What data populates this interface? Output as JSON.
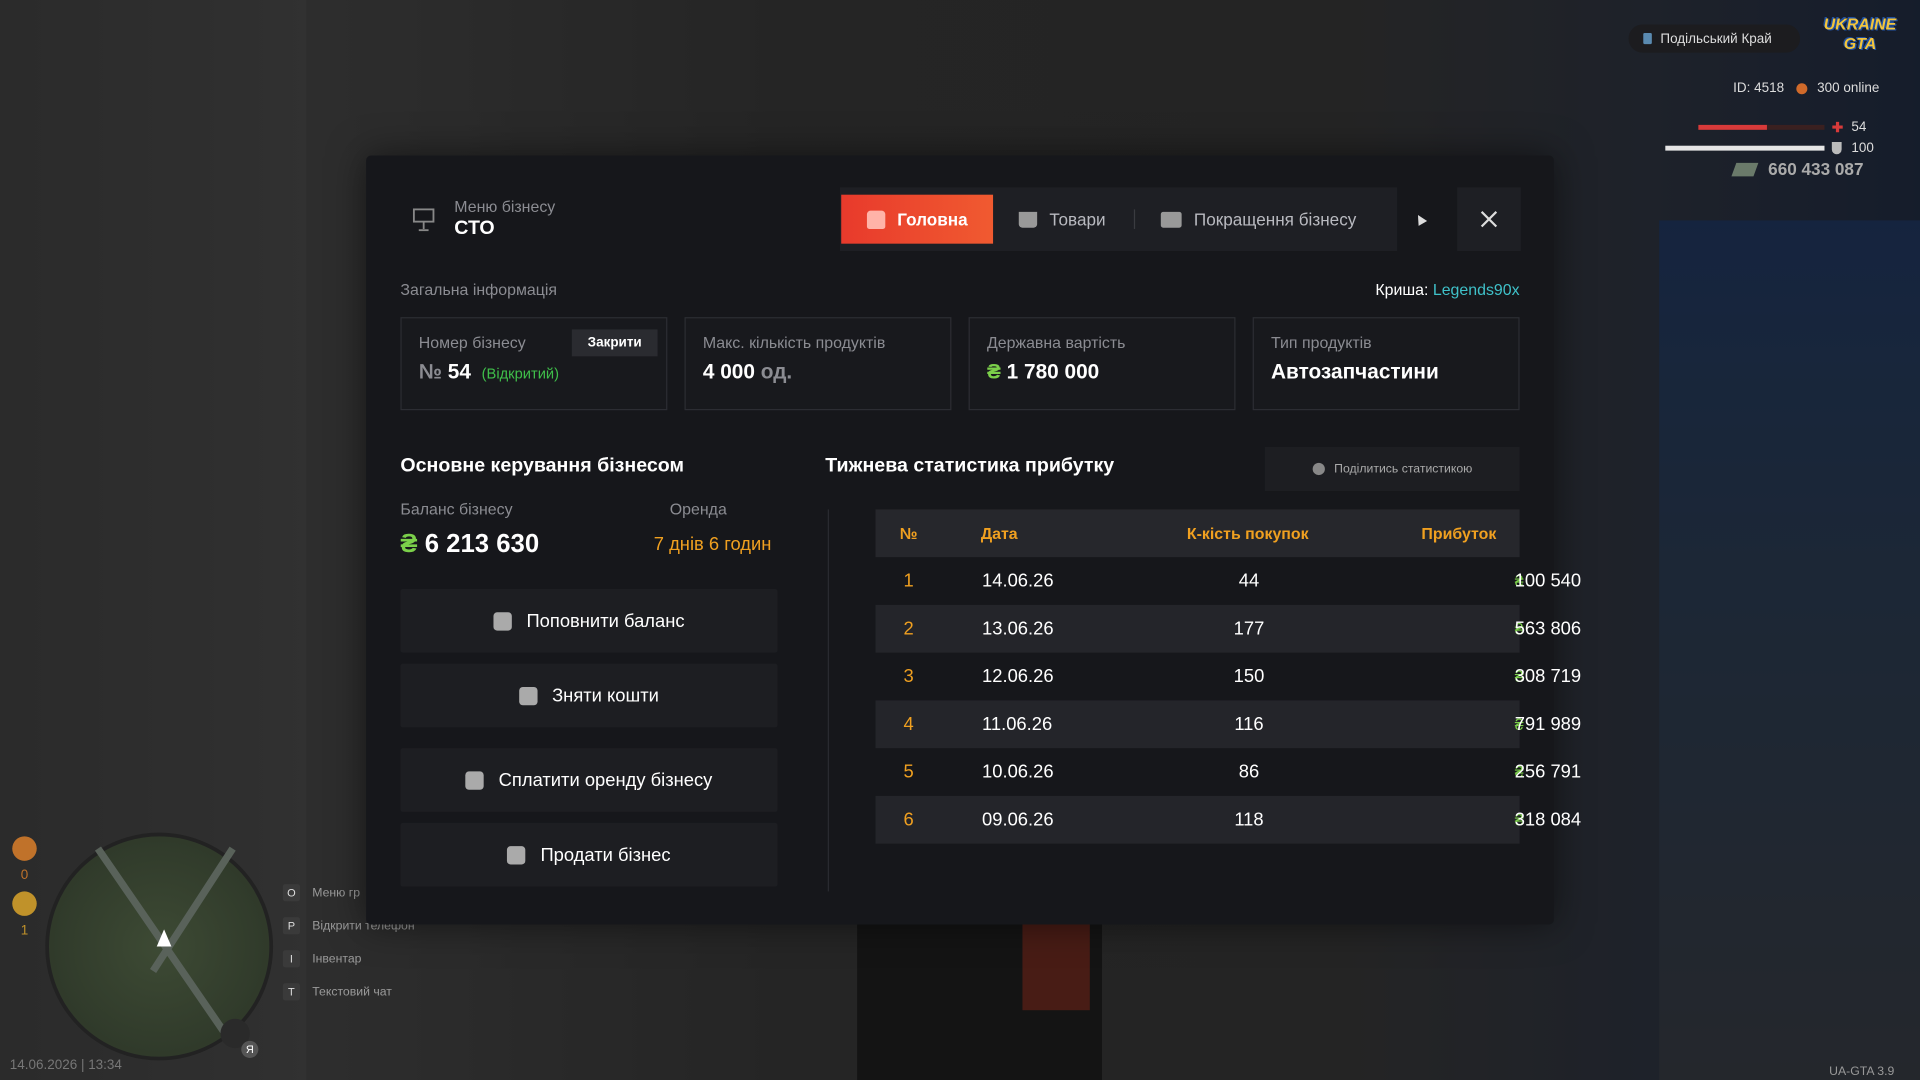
{
  "hud": {
    "server": "Подільський Край",
    "logo": "UKRAINE GTA",
    "id": "ID: 4518",
    "online": "300 online",
    "health": 54,
    "armor": 100,
    "money": "660 433 087",
    "counters": [
      0,
      1
    ],
    "hints": [
      {
        "key": "O",
        "label": "Меню гр"
      },
      {
        "key": "P",
        "label": "Відкрити телефон"
      },
      {
        "key": "I",
        "label": "Інвентар"
      },
      {
        "key": "T",
        "label": "Текстовий чат"
      }
    ],
    "voice_badge": "Я",
    "datetime": "14.06.2026 | 13:34",
    "version": "UA-GTA 3.9"
  },
  "panel": {
    "subtitle": "Меню бізнесу",
    "title": "СТО",
    "tabs": [
      "Головна",
      "Товари",
      "Покращення бізнесу"
    ],
    "section": "Загальна інформація",
    "roof_label": "Криша:",
    "roof_value": "Legends90x",
    "currency": "₴",
    "cards": [
      {
        "label": "Номер бізнесу",
        "button": "Закрити",
        "prefix": "№",
        "value": "54",
        "status": "(Відкритий)"
      },
      {
        "label": "Макс. кількість продуктів",
        "value": "4 000",
        "unit": "од."
      },
      {
        "label": "Державна вартість",
        "value": "1 780 000"
      },
      {
        "label": "Тип продуктів",
        "value": "Автозапчастини"
      }
    ],
    "management": {
      "title": "Основне керування бізнесом",
      "balance_label": "Баланс бізнесу",
      "rent_label": "Оренда",
      "balance": "6 213 630",
      "rent": "7 днів 6 годин",
      "buttons": [
        "Поповнити баланс",
        "Зняти кошти",
        "Сплатити оренду бізнесу",
        "Продати бізнес"
      ]
    },
    "stats": {
      "title": "Тижнева статистика прибутку",
      "share": "Поділитись статистикою",
      "columns": [
        "№",
        "Дата",
        "К-кість покупок",
        "Прибуток"
      ],
      "rows": [
        [
          1,
          "14.06.26",
          44,
          "100 540"
        ],
        [
          2,
          "13.06.26",
          177,
          "563 806"
        ],
        [
          3,
          "12.06.26",
          150,
          "308 719"
        ],
        [
          4,
          "11.06.26",
          116,
          "791 989"
        ],
        [
          5,
          "10.06.26",
          86,
          "256 791"
        ],
        [
          6,
          "09.06.26",
          118,
          "318 084"
        ]
      ]
    }
  }
}
